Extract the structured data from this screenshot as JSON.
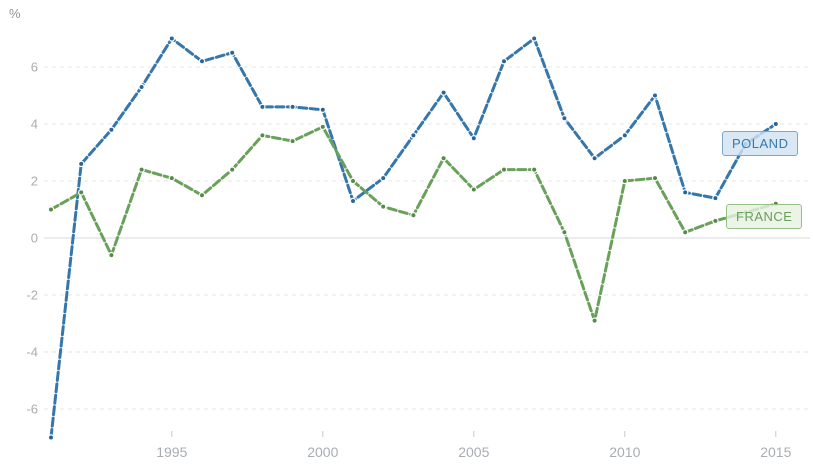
{
  "labels": {
    "unit": "%"
  },
  "colors": {
    "poland_line": "#3577ab",
    "poland_point": "#2a6598",
    "france_line": "#69a15b",
    "france_point": "#558a49",
    "grid_dashed": "#e4e4e4",
    "zero_line": "#d9d9d9",
    "tick_mark": "#c9c9c9",
    "tick_text": "#a9adb2"
  },
  "chart_data": {
    "type": "line",
    "title": "",
    "xlabel": "",
    "ylabel": "%",
    "grid": "horizontal dashed, solid zero line",
    "legend_position": "end-of-line chips at right",
    "line_style": "dashed with round point markers",
    "xlim": [
      1990.7,
      2016.2
    ],
    "ylim": [
      -7.8,
      7.4
    ],
    "xticks": [
      1995,
      2000,
      2005,
      2010,
      2015
    ],
    "yticks": [
      6,
      4,
      2,
      0,
      -2,
      -4,
      -6
    ],
    "x": [
      1991,
      1992,
      1993,
      1994,
      1995,
      1996,
      1997,
      1998,
      1999,
      2000,
      2001,
      2002,
      2003,
      2004,
      2005,
      2006,
      2007,
      2008,
      2009,
      2010,
      2011,
      2012,
      2013,
      2014,
      2015
    ],
    "series": [
      {
        "name": "POLAND",
        "values": [
          -7.0,
          2.6,
          3.8,
          5.3,
          7.0,
          6.2,
          6.5,
          4.6,
          4.6,
          4.5,
          1.3,
          2.1,
          3.6,
          5.1,
          3.5,
          6.2,
          7.0,
          4.2,
          2.8,
          3.6,
          5.0,
          1.6,
          1.4,
          3.3,
          4.0
        ]
      },
      {
        "name": "FRANCE",
        "values": [
          1.0,
          1.6,
          -0.6,
          2.4,
          2.1,
          1.5,
          2.4,
          3.6,
          3.4,
          3.9,
          2.0,
          1.1,
          0.8,
          2.8,
          1.7,
          2.4,
          2.4,
          0.2,
          -2.9,
          2.0,
          2.1,
          0.2,
          0.6,
          0.9,
          1.2
        ]
      }
    ]
  }
}
